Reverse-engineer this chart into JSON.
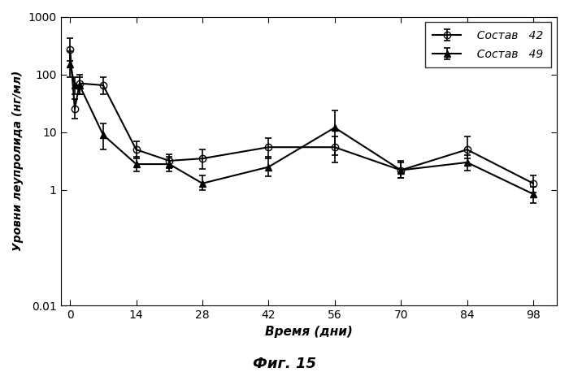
{
  "title": "Фиг. 15",
  "xlabel": "Время (дни)",
  "ylabel": "Уровни леупролида (нг/мл)",
  "series": [
    {
      "label": "  Состав   42",
      "marker": "o",
      "fillstyle": "none",
      "color": "#000000",
      "linewidth": 1.5,
      "markersize": 6,
      "x": [
        0,
        1,
        2,
        7,
        14,
        21,
        28,
        42,
        56,
        70,
        84,
        98
      ],
      "y": [
        270,
        25,
        70,
        65,
        5.0,
        3.2,
        3.5,
        5.5,
        5.5,
        2.2,
        5.0,
        1.3
      ],
      "yerr_lo": [
        100,
        8,
        25,
        20,
        1.5,
        0.8,
        1.2,
        2.0,
        2.5,
        0.6,
        1.5,
        0.4
      ],
      "yerr_hi": [
        150,
        12,
        30,
        25,
        2.0,
        1.0,
        1.5,
        2.5,
        3.0,
        0.8,
        3.5,
        0.5
      ]
    },
    {
      "label": "  Состав   49",
      "marker": "^",
      "fillstyle": "full",
      "color": "#000000",
      "linewidth": 1.5,
      "markersize": 6,
      "x": [
        0,
        1,
        2,
        7,
        14,
        21,
        28,
        42,
        56,
        70,
        84,
        98
      ],
      "y": [
        150,
        65,
        65,
        9.0,
        2.8,
        2.8,
        1.3,
        2.5,
        12.0,
        2.2,
        3.0,
        0.85
      ],
      "yerr_lo": [
        60,
        20,
        20,
        4.0,
        0.7,
        0.7,
        0.3,
        0.8,
        8.0,
        0.6,
        0.8,
        0.25
      ],
      "yerr_hi": [
        100,
        25,
        25,
        5.0,
        1.0,
        1.0,
        0.5,
        1.2,
        12.0,
        1.0,
        1.0,
        0.3
      ]
    }
  ],
  "xlim": [
    -2,
    103
  ],
  "ylim_log": [
    0.01,
    1000
  ],
  "xticks": [
    0,
    14,
    28,
    42,
    56,
    70,
    84,
    98
  ],
  "yticks": [
    0.01,
    1,
    10,
    100,
    1000
  ],
  "ytick_labels": [
    "0.01",
    "1",
    "10",
    "100",
    "1000"
  ],
  "background_color": "#ffffff",
  "legend_loc": "upper right",
  "figsize": [
    7.0,
    4.58
  ],
  "dpi": 100
}
